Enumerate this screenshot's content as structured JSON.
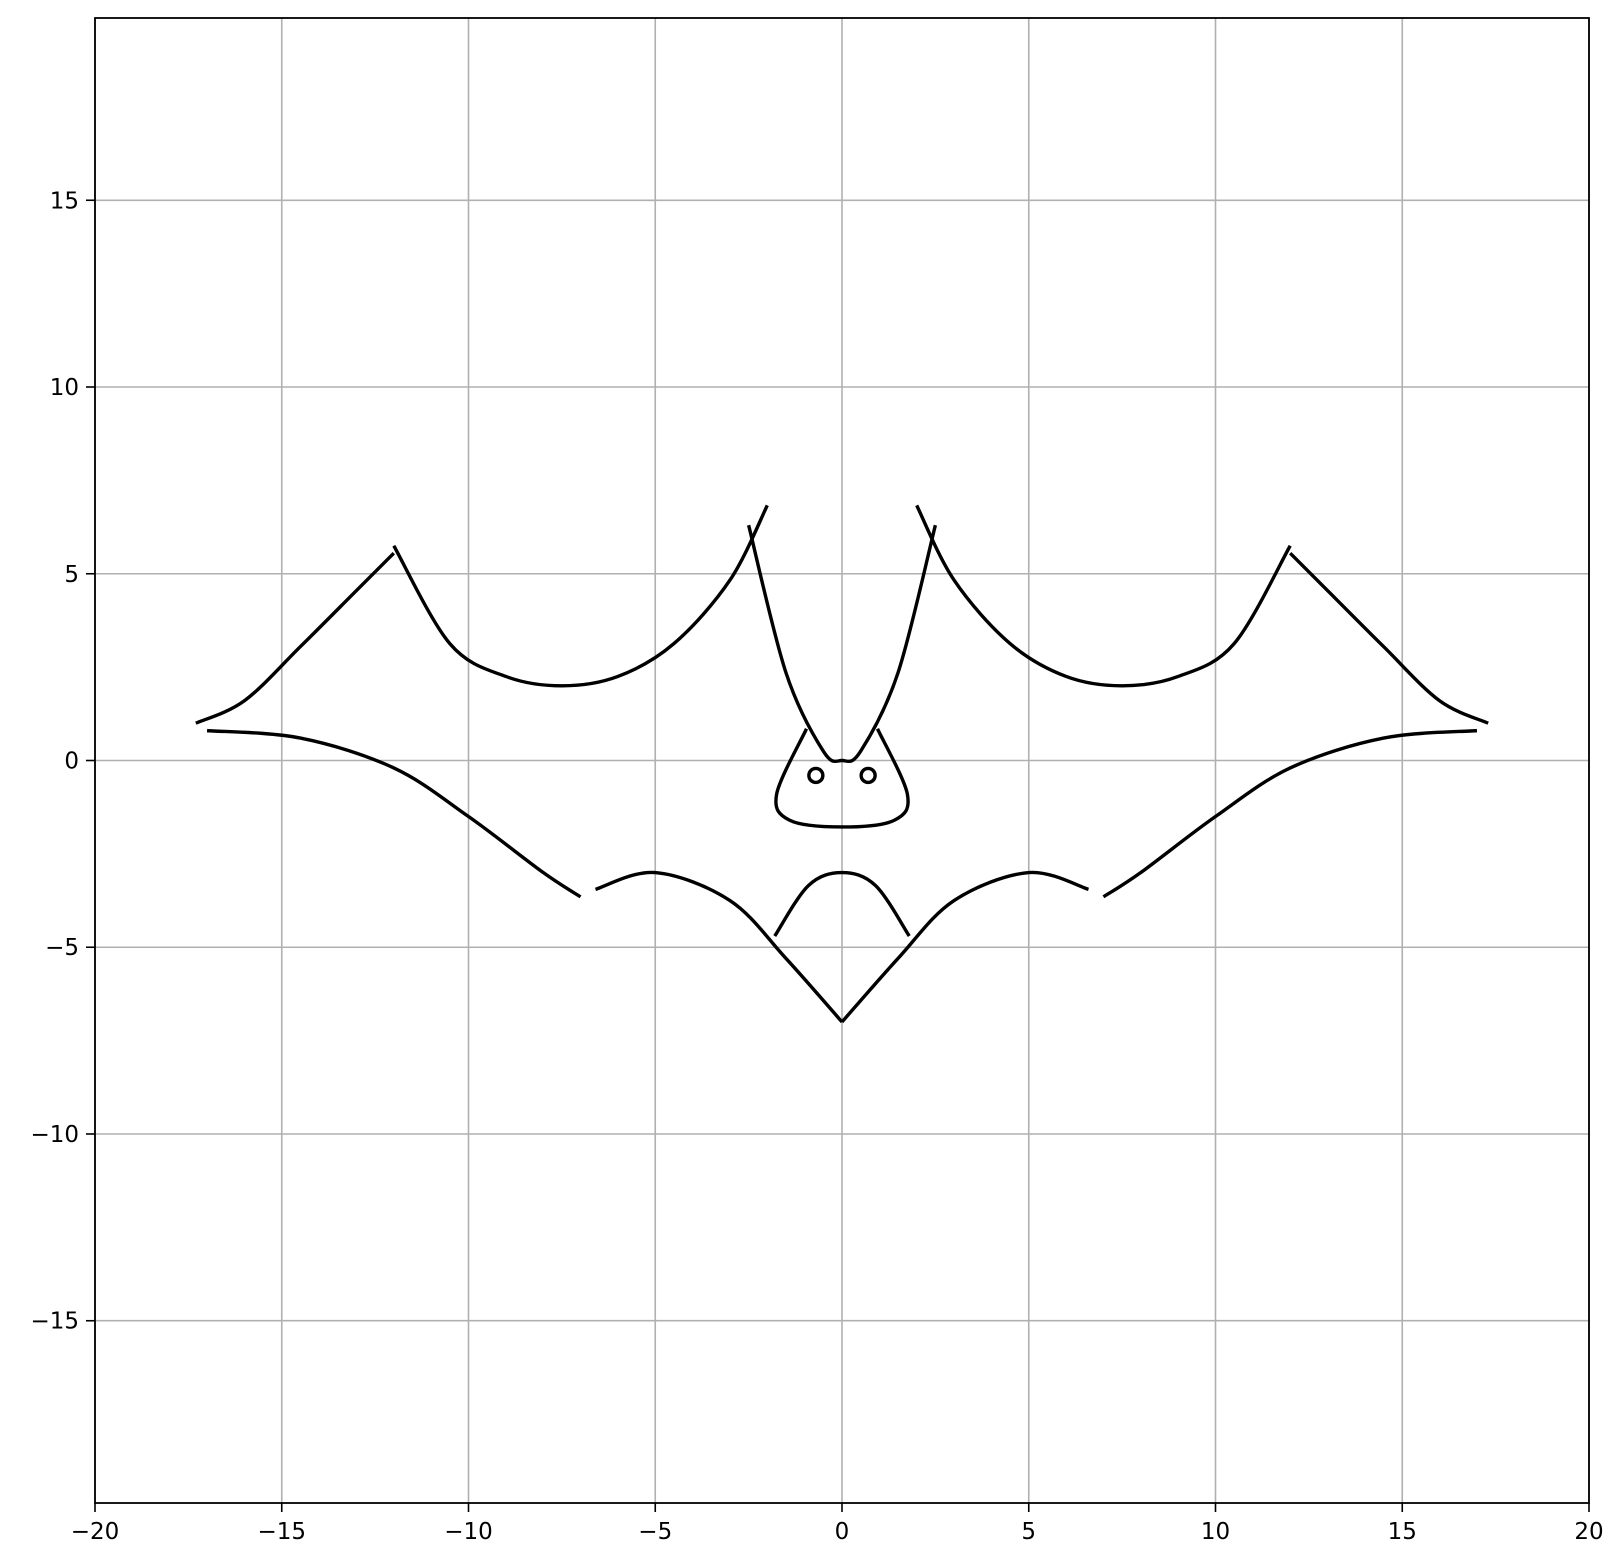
{
  "chart_data": {
    "type": "line",
    "title": "",
    "xlabel": "",
    "ylabel": "",
    "xlim": [
      -20,
      20
    ],
    "ylim": [
      -19.88,
      19.88
    ],
    "grid": true,
    "legend": "none",
    "line_color": "#000000",
    "grid_color": "#b0b0b0",
    "x_ticks": [
      -20,
      -15,
      -10,
      -5,
      0,
      5,
      10,
      15,
      20
    ],
    "y_ticks": [
      -15,
      -10,
      -5,
      0,
      5,
      10,
      15
    ],
    "x_tick_labels": [
      "−20",
      "−15",
      "−10",
      "−5",
      "0",
      "5",
      "10",
      "15",
      "20"
    ],
    "y_tick_labels": [
      "−15",
      "−10",
      "−5",
      "0",
      "5",
      "10",
      "15"
    ],
    "series": [
      {
        "x": [
          -12.0,
          -10.5,
          -9.0,
          -7.5,
          -6.0,
          -4.5,
          -3.0,
          -2.0
        ],
        "y": [
          5.75,
          3.13,
          2.25,
          2.0,
          2.25,
          3.13,
          4.83,
          6.83
        ]
      },
      {
        "x": [
          12.0,
          10.5,
          9.0,
          7.5,
          6.0,
          4.5,
          3.0,
          2.0
        ],
        "y": [
          5.75,
          3.13,
          2.25,
          2.0,
          2.25,
          3.13,
          4.83,
          6.83
        ]
      },
      {
        "x": [
          -17.3,
          -16.0,
          -14.5,
          -13.0,
          -12.0
        ],
        "y": [
          1.0,
          1.6,
          3.05,
          4.55,
          5.55
        ]
      },
      {
        "x": [
          17.3,
          16.0,
          14.5,
          13.0,
          12.0
        ],
        "y": [
          1.0,
          1.6,
          3.05,
          4.55,
          5.55
        ]
      },
      {
        "x": [
          -17.0,
          -14.5,
          -12.0,
          -10.0,
          -8.0,
          -7.0
        ],
        "y": [
          0.8,
          0.6,
          -0.2,
          -1.5,
          -3.0,
          -3.65
        ]
      },
      {
        "x": [
          17.0,
          14.5,
          12.0,
          10.0,
          8.0,
          7.0
        ],
        "y": [
          0.8,
          0.6,
          -0.2,
          -1.5,
          -3.0,
          -3.65
        ]
      },
      {
        "x": [
          -6.6,
          -5.0,
          -3.0,
          -1.5,
          0.0
        ],
        "y": [
          -3.45,
          -3.0,
          -3.75,
          -5.3,
          -7.0
        ]
      },
      {
        "x": [
          6.6,
          5.0,
          3.0,
          1.5,
          0.0
        ],
        "y": [
          -3.45,
          -3.0,
          -3.75,
          -5.3,
          -7.0
        ]
      },
      {
        "x": [
          -1.8,
          -0.9,
          0.0,
          0.9,
          1.8
        ],
        "y": [
          -4.7,
          -3.35,
          -3.0,
          -3.35,
          -4.7
        ]
      },
      {
        "x": [
          -2.5,
          -1.5,
          -0.5,
          0.0,
          0.5,
          1.5,
          2.5
        ],
        "y": [
          6.3,
          2.35,
          0.25,
          0.0,
          0.25,
          2.35,
          6.3
        ]
      },
      {
        "x": [
          -0.95,
          -1.75,
          -1.4,
          0.0,
          1.4,
          1.75,
          0.95
        ],
        "y": [
          0.85,
          -0.9,
          -1.6,
          -1.78,
          -1.6,
          -0.9,
          0.85
        ]
      },
      {
        "x": [
          -0.7
        ],
        "y": [
          -0.4
        ]
      },
      {
        "x": [
          0.7
        ],
        "y": [
          -0.4
        ]
      }
    ]
  }
}
